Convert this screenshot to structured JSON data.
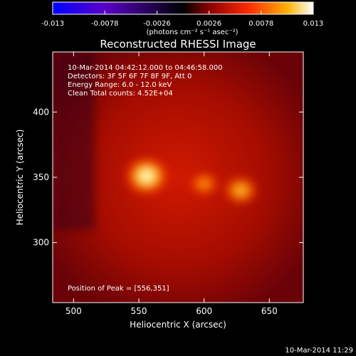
{
  "chart_data": {
    "type": "heatmap",
    "title": "Reconstructed RHESSI Image",
    "xlabel": "Heliocentric X (arcsec)",
    "ylabel": "Heliocentric Y (arcsec)",
    "xlim": [
      484,
      676
    ],
    "ylim": [
      254,
      446
    ],
    "xticks": [
      500,
      550,
      600,
      650
    ],
    "yticks": [
      300,
      350,
      400
    ],
    "colorbar": {
      "min": -0.013,
      "max": 0.013,
      "ticks": [
        "-0.013",
        "-0.0078",
        "-0.0026",
        "0.0026",
        "0.0078",
        "0.013"
      ],
      "unit_label": "(photons cm⁻² s⁻¹ asec⁻²)",
      "colormap": [
        "#0000ff",
        "#5a00c8",
        "#000000",
        "#8a0000",
        "#ff2a00",
        "#ffb000",
        "#ffffff"
      ]
    },
    "annotations": [
      "10-Mar-2014 04:42:12.000 to 04:46:58.000",
      "Detectors: 3F 5F 6F 7F 8F 9F, Att 0",
      "Energy Range: 6.0 - 12.0 keV",
      "Clean     Total counts: 4.52E+04"
    ],
    "peak_label": "Position of Peak = [556,351]",
    "peak_position": [
      556,
      351
    ],
    "sources": [
      {
        "x": 556,
        "y": 351,
        "intensity": 1.0
      },
      {
        "x": 600,
        "y": 345,
        "intensity": 0.55
      },
      {
        "x": 628,
        "y": 340,
        "intensity": 0.72
      }
    ],
    "background_level": 0.28
  },
  "footer_timestamp": "10-Mar-2014 11:29"
}
